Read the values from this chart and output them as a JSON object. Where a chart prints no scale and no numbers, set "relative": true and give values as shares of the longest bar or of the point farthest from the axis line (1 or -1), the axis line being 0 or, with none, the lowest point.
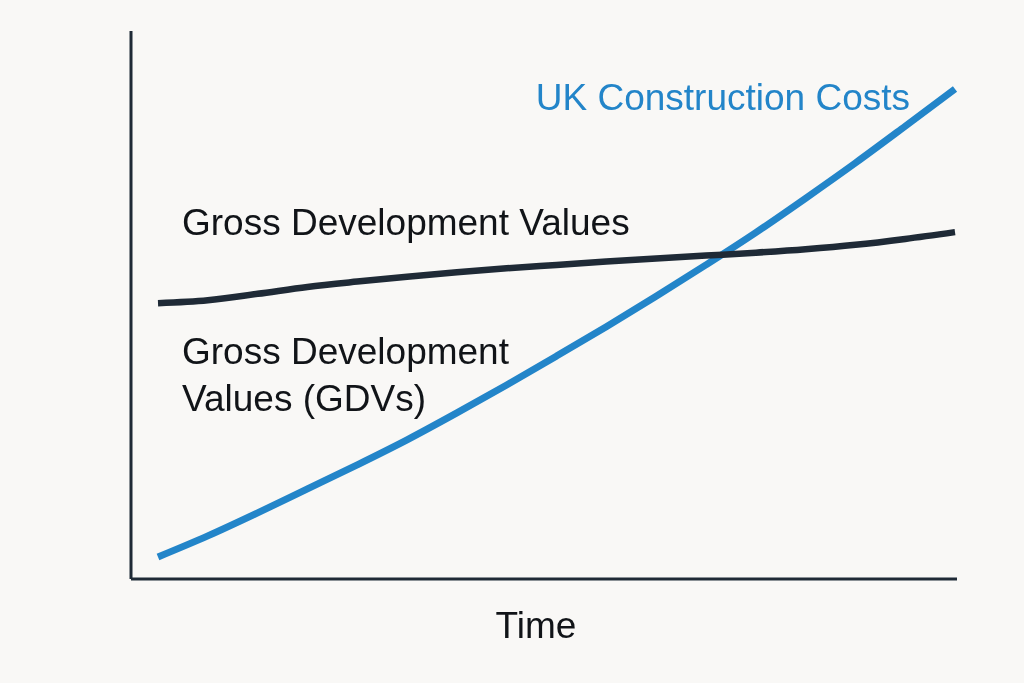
{
  "chart_data": {
    "type": "line",
    "relative": true,
    "xlabel": "Time",
    "categories": [
      null,
      null,
      null,
      null,
      null,
      null,
      null,
      null,
      null,
      null,
      null,
      null,
      null,
      null,
      null,
      null,
      null
    ],
    "series": [
      {
        "name": "UK Construction Costs",
        "color": "#2385c9",
        "values": [
          0.045,
          0.088,
          0.135,
          0.184,
          0.233,
          0.284,
          0.339,
          0.396,
          0.455,
          0.515,
          0.577,
          0.641,
          0.707,
          0.777,
          0.849,
          0.924,
          1
        ]
      },
      {
        "name": "Gross Development Values",
        "color": "#1f2a36",
        "values": [
          0.563,
          0.569,
          0.582,
          0.596,
          0.607,
          0.617,
          0.626,
          0.634,
          0.641,
          0.648,
          0.654,
          0.66,
          0.666,
          0.673,
          0.682,
          0.694,
          0.708
        ]
      }
    ],
    "annotations": [
      "Gross Development Values (GDVs)"
    ]
  }
}
